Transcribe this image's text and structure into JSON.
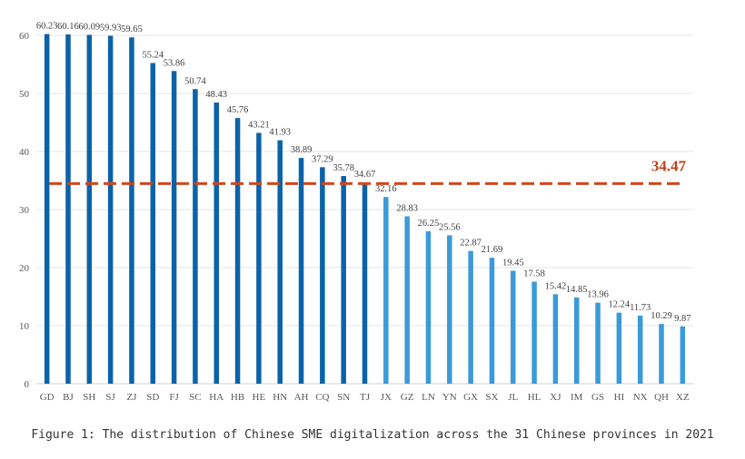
{
  "chart_data": {
    "type": "bar",
    "categories": [
      "GD",
      "BJ",
      "SH",
      "SJ",
      "ZJ",
      "SD",
      "FJ",
      "SC",
      "HA",
      "HB",
      "HE",
      "HN",
      "AH",
      "CQ",
      "SN",
      "TJ",
      "JX",
      "GZ",
      "LN",
      "YN",
      "GX",
      "SX",
      "JL",
      "HL",
      "XJ",
      "IM",
      "GS",
      "HI",
      "NX",
      "QH",
      "XZ"
    ],
    "values": [
      60.23,
      60.16,
      60.09,
      59.93,
      59.65,
      55.24,
      53.86,
      50.74,
      48.43,
      45.76,
      43.21,
      41.93,
      38.89,
      37.29,
      35.78,
      34.67,
      32.16,
      28.83,
      26.25,
      25.56,
      22.87,
      21.69,
      19.45,
      17.58,
      15.42,
      14.85,
      13.96,
      12.24,
      11.73,
      10.29,
      9.87
    ],
    "value_labels": [
      "60.23",
      "60.16",
      "60.09",
      "59.93",
      "59.65",
      "55.24",
      "53.86",
      "50.74",
      "48.43",
      "45.76",
      "43.21",
      "41.93",
      "38.89",
      "37.29",
      "35.78",
      "34.67",
      "32.16",
      "28.83",
      "26.25",
      "25.56",
      "22.87",
      "21.69",
      "19.45",
      "17.58",
      "15.42",
      "14.85",
      "13.96",
      "12.24",
      "11.73",
      "10.29",
      "9.87"
    ],
    "above_average_color": "#0a63a8",
    "below_average_color": "#3b9ad8",
    "average_line": {
      "value": 34.47,
      "label": "34.47",
      "color": "#d2461c",
      "style": "dashed"
    },
    "yticks": [
      "0",
      "10",
      "20",
      "30",
      "40",
      "50",
      "60"
    ],
    "ylim": [
      0,
      60
    ],
    "grid": true,
    "title": "",
    "xlabel": "",
    "ylabel": ""
  },
  "caption": "Figure 1: The distribution of Chinese SME digitalization across the 31 Chinese provinces in 2021"
}
